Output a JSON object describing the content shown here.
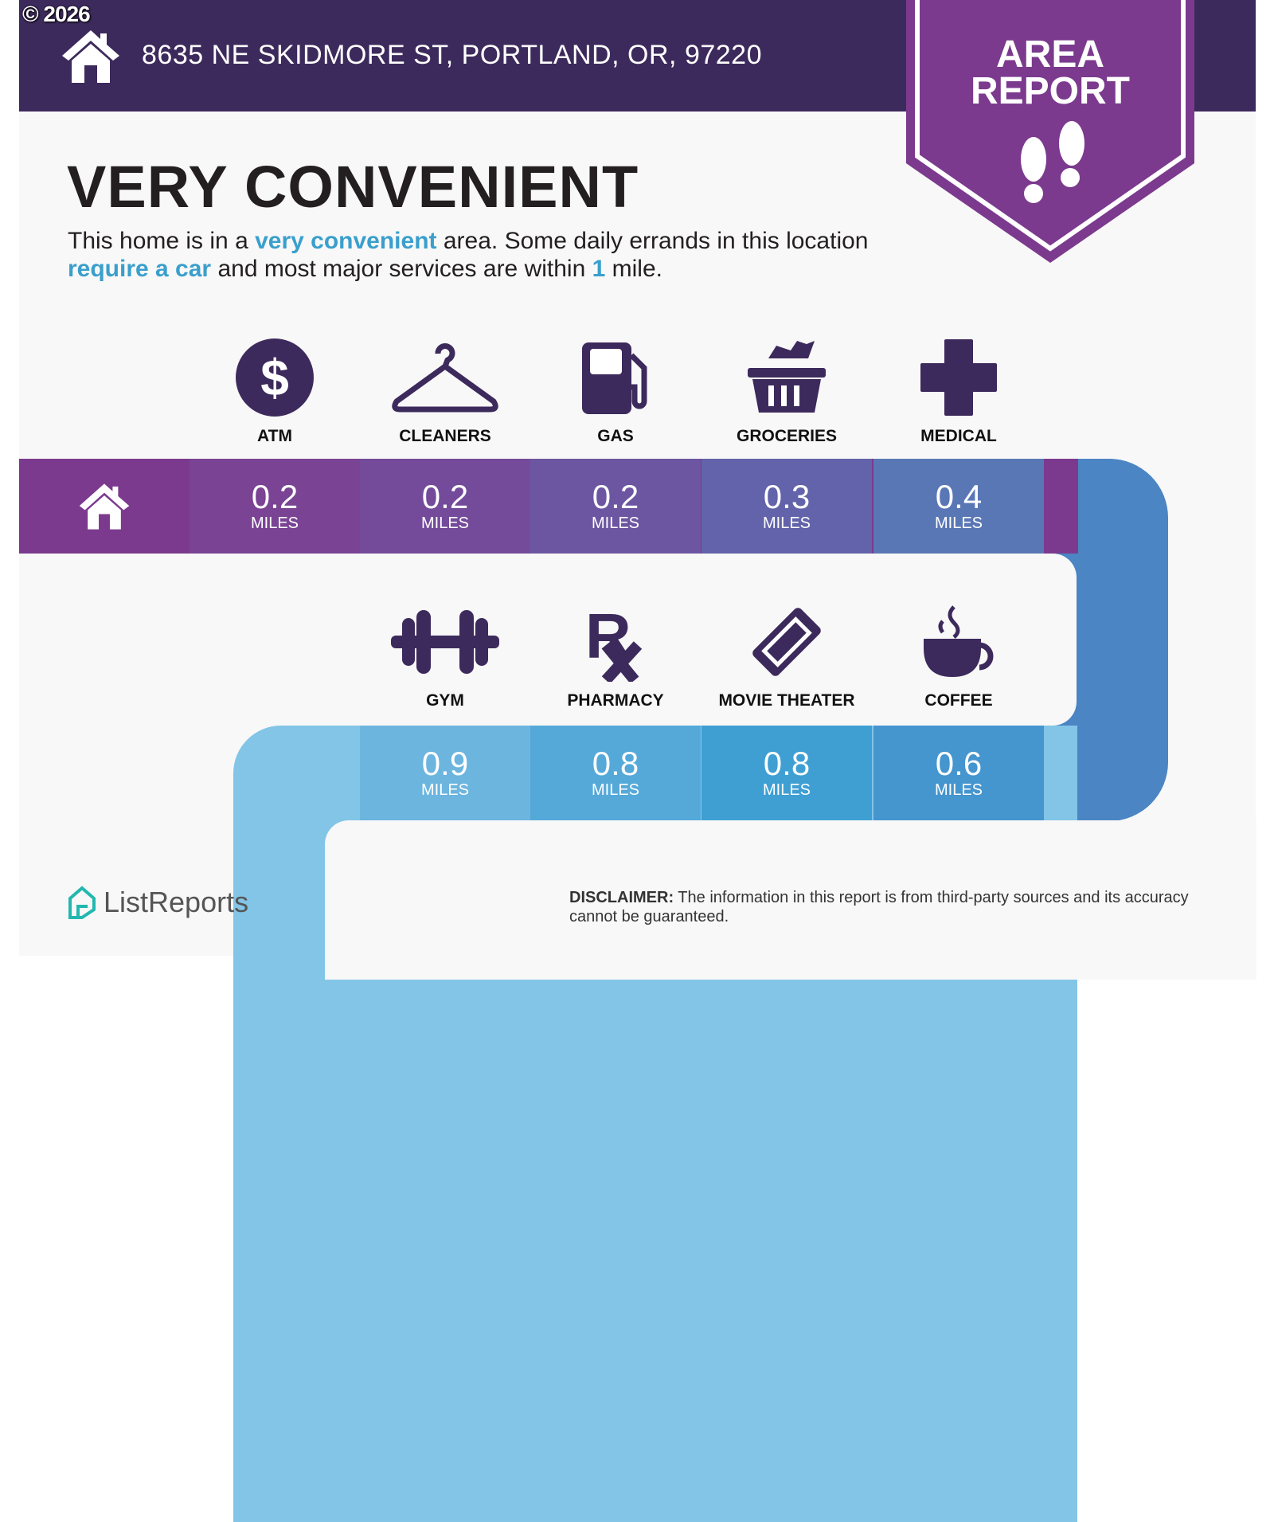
{
  "header": {
    "copyright": "© 2026",
    "address": "8635 NE SKIDMORE ST, PORTLAND, OR, 97220",
    "badge_line1": "AREA",
    "badge_line2": "REPORT"
  },
  "summary": {
    "title": "VERY CONVENIENT",
    "p1": "This home is in a ",
    "h1": "very convenient",
    "p2": " area. Some daily errands in this location ",
    "h2": "require a car",
    "p3": " and most major services are within ",
    "h3": "1",
    "p4": " mile."
  },
  "top_row": [
    {
      "label": "ATM",
      "value": "0.2",
      "unit": "MILES",
      "icon": "dollar-icon"
    },
    {
      "label": "CLEANERS",
      "value": "0.2",
      "unit": "MILES",
      "icon": "hanger-icon"
    },
    {
      "label": "GAS",
      "value": "0.2",
      "unit": "MILES",
      "icon": "gas-pump-icon"
    },
    {
      "label": "GROCERIES",
      "value": "0.3",
      "unit": "MILES",
      "icon": "basket-icon"
    },
    {
      "label": "MEDICAL",
      "value": "0.4",
      "unit": "MILES",
      "icon": "medical-cross-icon"
    }
  ],
  "bottom_row": [
    {
      "label": "GYM",
      "value": "0.9",
      "unit": "MILES",
      "icon": "dumbbell-icon"
    },
    {
      "label": "PHARMACY",
      "value": "0.8",
      "unit": "MILES",
      "icon": "rx-icon"
    },
    {
      "label": "MOVIE THEATER",
      "value": "0.8",
      "unit": "MILES",
      "icon": "ticket-icon"
    },
    {
      "label": "COFFEE",
      "value": "0.6",
      "unit": "MILES",
      "icon": "coffee-icon"
    }
  ],
  "footer": {
    "brand": "ListReports",
    "disclaimer_label": "DISCLAIMER:",
    "disclaimer": " The information in this report is from third-party sources and its accuracy cannot be guaranteed."
  },
  "colors": {
    "banner": "#3d2a5c",
    "ribbon": "#7b3a8e",
    "icon": "#3d2a5c",
    "highlight": "#3a9fcc"
  }
}
